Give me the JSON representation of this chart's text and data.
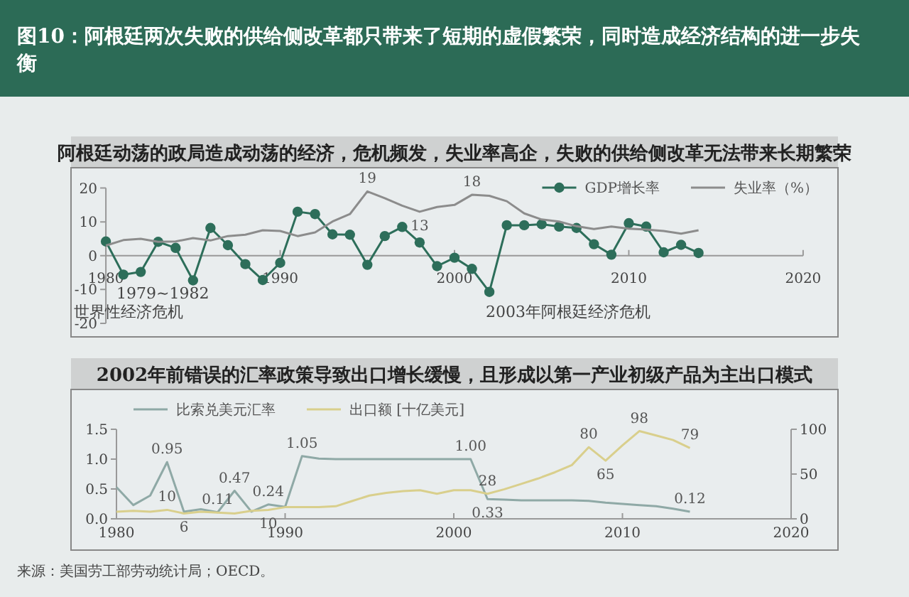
{
  "chart_data": [
    {
      "type": "line",
      "title": "图10：阿根廷两次失败的供给侧改革都只带来了短期的虚假繁荣，同时造成经济结构的进一步失衡",
      "subtitle": "阿根廷动荡的政局造成动荡的经济，危机频发，失业率高企，失败的供给侧改革无法带来长期繁荣",
      "xlim": [
        1978,
        2022
      ],
      "xticks": [
        1980,
        1990,
        2000,
        2010,
        2020
      ],
      "ylim": [
        -24,
        26
      ],
      "yticks": [
        -20,
        -10,
        0,
        10,
        20
      ],
      "legend": "top right",
      "annotations": [
        "1979~1982",
        "世界性经济危机",
        "2003年阿根廷经济危机"
      ],
      "series": [
        {
          "name": "GDP增长率",
          "color": "#2d6e5a",
          "marker": "circle",
          "x": [
            1980,
            1981,
            1982,
            1983,
            1984,
            1985,
            1986,
            1987,
            1988,
            1989,
            1990,
            1991,
            1992,
            1993,
            1994,
            1995,
            1996,
            1997,
            1998,
            1999,
            2000,
            2001,
            2002,
            2003,
            2004,
            2005,
            2006,
            2007,
            2008,
            2009,
            2010,
            2011,
            2012,
            2013,
            2014
          ],
          "values": [
            4.2,
            -5.6,
            -4.8,
            4.1,
            2.3,
            -7.3,
            8.2,
            3.1,
            -2.5,
            -7.2,
            -2.1,
            13.0,
            12.3,
            6.3,
            6.2,
            -2.7,
            5.8,
            8.5,
            3.9,
            -3.1,
            -0.6,
            -3.9,
            -10.7,
            9.0,
            9.0,
            9.3,
            8.6,
            8.2,
            3.4,
            0.3,
            9.6,
            8.6,
            1.0,
            3.2,
            0.8
          ]
        },
        {
          "name": "失业率（%）",
          "color": "#8c8c8c",
          "marker": "none",
          "x": [
            1980,
            1981,
            1982,
            1983,
            1984,
            1985,
            1986,
            1987,
            1988,
            1989,
            1990,
            1991,
            1992,
            1993,
            1994,
            1995,
            1996,
            1997,
            1998,
            1999,
            2000,
            2001,
            2002,
            2003,
            2004,
            2005,
            2006,
            2007,
            2008,
            2009,
            2010,
            2011,
            2012,
            2013,
            2014
          ],
          "values": [
            3,
            4.6,
            5,
            4.1,
            4.2,
            5.2,
            4.5,
            5.8,
            6.2,
            7.5,
            7.3,
            5.8,
            6.9,
            10.1,
            12.3,
            19,
            17,
            14.8,
            13,
            14.4,
            15,
            18,
            17.7,
            16.1,
            12.5,
            10.7,
            10.1,
            8.7,
            7.9,
            8.6,
            8.0,
            7.7,
            7.3,
            6.5,
            7.5
          ],
          "value_labels": [
            null,
            null,
            null,
            null,
            null,
            null,
            null,
            null,
            null,
            null,
            null,
            null,
            null,
            null,
            null,
            "19",
            null,
            null,
            "13",
            null,
            null,
            "18",
            null,
            null,
            null,
            null,
            null,
            null,
            null,
            null,
            null,
            null,
            null,
            null,
            null
          ]
        }
      ]
    },
    {
      "type": "line",
      "title": "2002年前错误的汇率政策导致出口增长缓慢，且形成以第一产业初级产品为主出口模式",
      "xlim": [
        1980,
        2020
      ],
      "xticks": [
        1980,
        1990,
        2000,
        2010,
        2020
      ],
      "ylim": [
        0,
        1.5
      ],
      "yticks": [
        {
          "value": 0,
          "label": "0.0"
        },
        {
          "value": 0.5,
          "label": "0.5"
        },
        {
          "value": 1,
          "label": "1.0"
        },
        {
          "value": 1.5,
          "label": "1.5"
        }
      ],
      "y2lim": [
        0,
        100
      ],
      "y2ticks": [
        0,
        50,
        100
      ],
      "legend": "top left",
      "annotations": [
        "来源：美国劳工部劳动统计局；OECD。"
      ],
      "series": [
        {
          "name": "比索兑美元汇率",
          "color": "#8fa9a6",
          "marker": "none",
          "x": [
            1980,
            1981,
            1982,
            1983,
            1984,
            1985,
            1986,
            1987,
            1988,
            1989,
            1990,
            1991,
            1992,
            1993,
            1994,
            1995,
            1996,
            1997,
            1998,
            1999,
            2000,
            2001,
            2002,
            2003,
            2004,
            2005,
            2006,
            2007,
            2008,
            2009,
            2010,
            2011,
            2012,
            2013,
            2014
          ],
          "values": [
            0.53,
            0.23,
            0.39,
            0.95,
            0.12,
            0.16,
            0.11,
            0.47,
            0.12,
            0.24,
            0.2,
            1.05,
            1.01,
            1.0,
            1.0,
            1.0,
            1.0,
            1.0,
            1.0,
            1.0,
            1.0,
            1.0,
            0.33,
            0.32,
            0.31,
            0.31,
            0.31,
            0.31,
            0.3,
            0.27,
            0.25,
            0.23,
            0.21,
            0.17,
            0.12
          ],
          "value_labels": [
            null,
            null,
            null,
            "0.95",
            null,
            null,
            "0.11",
            "0.47",
            null,
            "0.24",
            null,
            "1.05",
            null,
            null,
            null,
            null,
            null,
            null,
            null,
            null,
            null,
            "1.00",
            "0.33",
            null,
            null,
            null,
            null,
            null,
            null,
            null,
            null,
            null,
            null,
            null,
            "0.12"
          ]
        },
        {
          "name": "出口额 [十亿美元]",
          "color": "#d9cf8c",
          "marker": "none",
          "axis": "y2",
          "x": [
            1980,
            1981,
            1982,
            1983,
            1984,
            1985,
            1986,
            1987,
            1988,
            1989,
            1990,
            1991,
            1992,
            1993,
            1994,
            1995,
            1996,
            1997,
            1998,
            1999,
            2000,
            2001,
            2002,
            2003,
            2004,
            2005,
            2006,
            2007,
            2008,
            2009,
            2010,
            2011,
            2012,
            2013,
            2014
          ],
          "values": [
            8,
            9,
            8,
            10,
            6,
            8,
            7,
            6,
            9,
            10,
            13,
            13,
            13,
            14,
            20,
            26,
            29,
            31,
            32,
            28,
            32,
            32,
            28,
            33,
            39,
            45,
            52,
            60,
            80,
            65,
            82,
            98,
            93,
            88,
            79
          ],
          "value_labels": [
            null,
            null,
            null,
            "10",
            "6",
            null,
            null,
            null,
            null,
            "10",
            null,
            null,
            null,
            null,
            null,
            null,
            null,
            null,
            null,
            null,
            null,
            null,
            "28",
            null,
            null,
            null,
            null,
            null,
            "80",
            "65",
            null,
            "98",
            null,
            null,
            "79"
          ]
        }
      ]
    }
  ]
}
